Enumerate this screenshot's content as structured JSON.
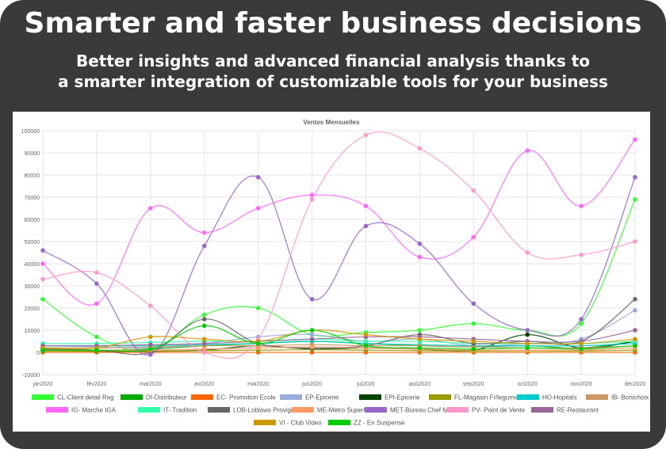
{
  "header": {
    "headline": "Smarter and faster business decisions",
    "subline_1": "Better insights and advanced financial analysis thanks to",
    "subline_2": "a smarter integration of customizable tools for your business"
  },
  "chart_data": {
    "type": "line",
    "title": "Ventes Mensuelles",
    "xlabel": "",
    "ylabel": "",
    "ylim": [
      -10000,
      100000
    ],
    "yticks": [
      "-10000",
      "0",
      "10000",
      "20000",
      "30000",
      "40000",
      "50000",
      "60000",
      "70000",
      "80000",
      "90000",
      "100000"
    ],
    "grid": true,
    "legend_position": "bottom",
    "categories": [
      "jan2020",
      "fév2020",
      "mar2020",
      "avr2020",
      "mai2020",
      "jun2020",
      "jul2020",
      "aoû2020",
      "sep2020",
      "oct2020",
      "nov2020",
      "déc2020"
    ],
    "series": [
      {
        "name": "CL-Client detail Reg",
        "color": "#33ff33",
        "values": [
          24000,
          7000,
          1000,
          17000,
          20000,
          8000,
          9000,
          10000,
          13000,
          10000,
          13000,
          69000
        ]
      },
      {
        "name": "DI-Distributeur",
        "color": "#00aa00",
        "values": [
          2000,
          1000,
          1500,
          3000,
          4000,
          5000,
          4000,
          3000,
          2500,
          3000,
          2000,
          5000
        ]
      },
      {
        "name": "EC- Promotion Ecole",
        "color": "#ff6600",
        "values": [
          0,
          0,
          0,
          0,
          0,
          0,
          0,
          0,
          0,
          0,
          0,
          0
        ]
      },
      {
        "name": "EP-Epicerie",
        "color": "#99aadd",
        "values": [
          3000,
          2500,
          2000,
          4000,
          7000,
          8000,
          5000,
          6000,
          3000,
          4000,
          6000,
          19000
        ]
      },
      {
        "name": "EPI-Epicerie",
        "color": "#004400",
        "values": [
          1000,
          500,
          500,
          1000,
          3000,
          1500,
          2000,
          1500,
          1000,
          8000,
          2000,
          5000
        ]
      },
      {
        "name": "FL-Magasin Fr/legume",
        "color": "#999900",
        "values": [
          500,
          500,
          500,
          800,
          1000,
          1200,
          1000,
          800,
          600,
          700,
          600,
          1000
        ]
      },
      {
        "name": "HO-Hopitals",
        "color": "#00cccc",
        "values": [
          3000,
          3000,
          3000,
          3500,
          4000,
          5000,
          4000,
          3500,
          3000,
          3000,
          3000,
          4000
        ]
      },
      {
        "name": "IB- Bonichoix",
        "color": "#cc9966",
        "values": [
          2000,
          2000,
          2500,
          3000,
          3000,
          3500,
          3000,
          3000,
          2500,
          2000,
          2000,
          3000
        ]
      },
      {
        "name": "IG- Marche IGA",
        "color": "#ff66ff",
        "values": [
          40000,
          22000,
          65000,
          54000,
          65000,
          71000,
          66000,
          43000,
          52000,
          91000,
          66000,
          96000
        ]
      },
      {
        "name": "IT- Tradition",
        "color": "#33ffaa",
        "values": [
          4000,
          4000,
          4500,
          5000,
          5000,
          6000,
          5000,
          5000,
          4000,
          4000,
          4000,
          5000
        ]
      },
      {
        "name": "LOB-Loblaws Provigo",
        "color": "#666666",
        "values": [
          1500,
          1000,
          0,
          15000,
          4000,
          2000,
          3000,
          8000,
          4000,
          5000,
          5000,
          24000
        ]
      },
      {
        "name": "ME-Metro SuperC List",
        "color": "#ff9966",
        "values": [
          1000,
          1000,
          1000,
          1500,
          2000,
          2500,
          2000,
          1500,
          1000,
          1000,
          1000,
          2000
        ]
      },
      {
        "name": "MET-Bureau Chef Metr",
        "color": "#9966cc",
        "values": [
          46000,
          31000,
          -1000,
          48000,
          79000,
          24000,
          57000,
          49000,
          22000,
          10000,
          15000,
          79000
        ]
      },
      {
        "name": "PV- Point de Vente",
        "color": "#ff99cc",
        "values": [
          33000,
          36000,
          21000,
          0,
          6000,
          69000,
          98000,
          92000,
          73000,
          45000,
          44000,
          50000
        ]
      },
      {
        "name": "RE-Restaurant",
        "color": "#996699",
        "values": [
          3000,
          3000,
          3500,
          4000,
          5000,
          6000,
          7000,
          7000,
          6000,
          5000,
          5000,
          10000
        ]
      },
      {
        "name": "VI - Club Video",
        "color": "#cc9900",
        "values": [
          2000,
          2000,
          7000,
          6000,
          5000,
          10000,
          8000,
          6000,
          5000,
          4000,
          4000,
          6000
        ]
      },
      {
        "name": "ZZ - En Suspense",
        "color": "#00cc00",
        "values": [
          1000,
          1000,
          1500,
          12000,
          4000,
          10000,
          3000,
          2000,
          1500,
          2000,
          1500,
          3000
        ]
      }
    ]
  }
}
